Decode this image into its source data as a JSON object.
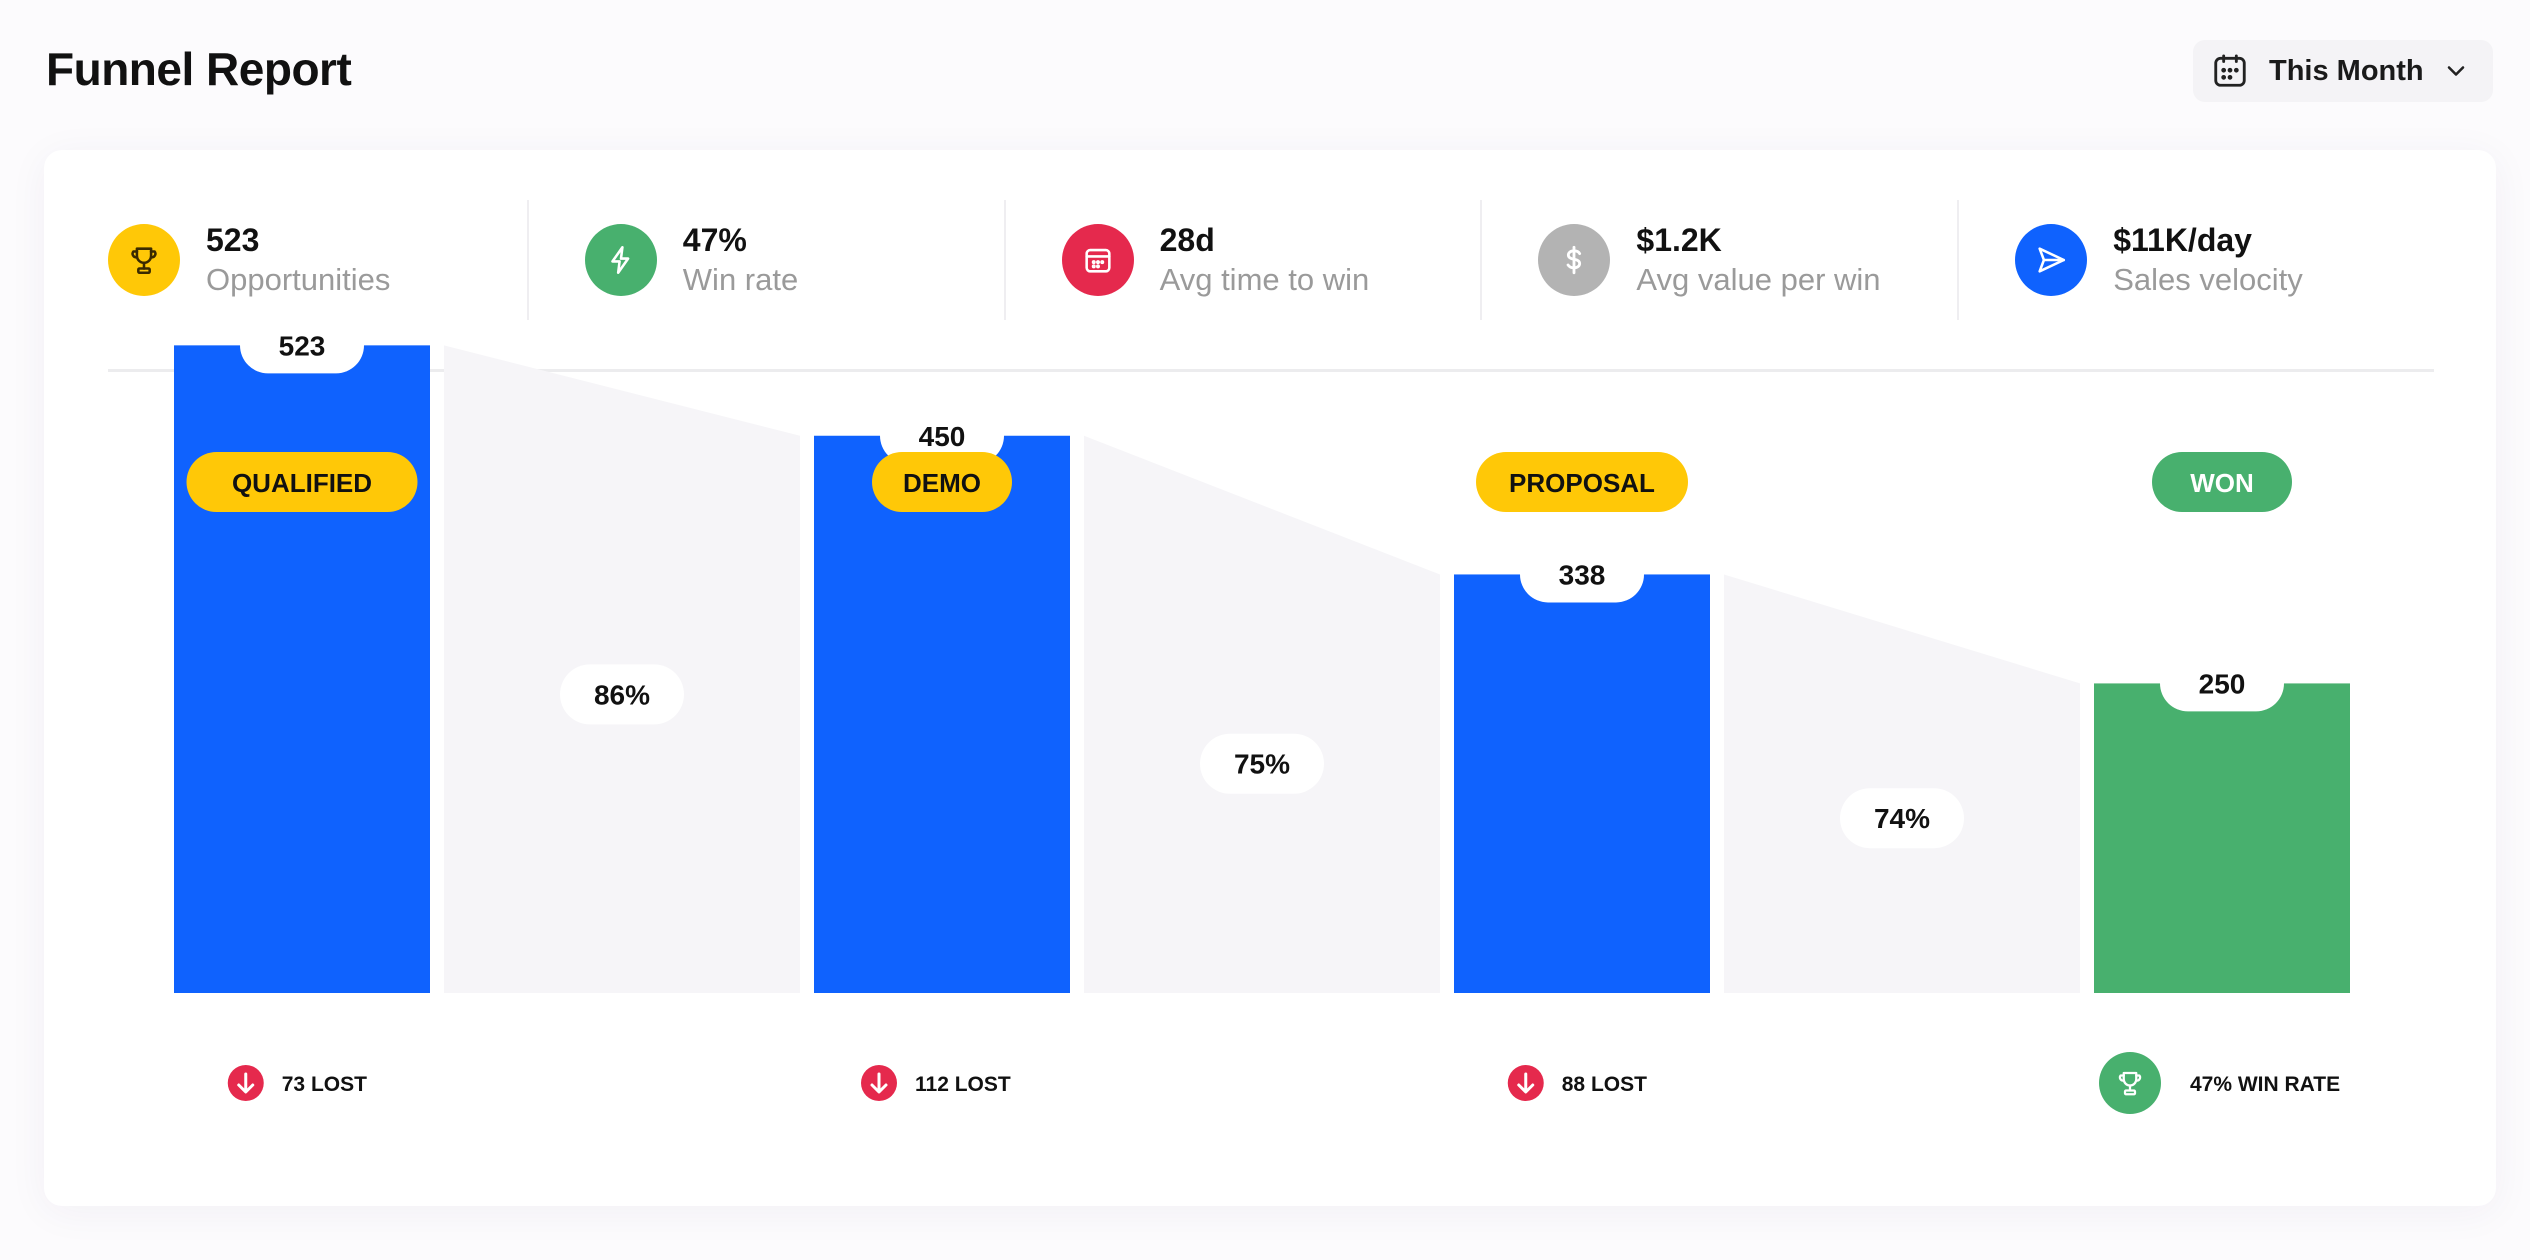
{
  "header": {
    "title": "Funnel Report",
    "date_filter": {
      "label": "This Month"
    }
  },
  "stats": [
    {
      "value": "523",
      "label": "Opportunities",
      "icon": "trophy-icon",
      "color": "#ffc807"
    },
    {
      "value": "47%",
      "label": "Win rate",
      "icon": "lightning-icon",
      "color": "#48b06e"
    },
    {
      "value": "28d",
      "label": "Avg time to win",
      "icon": "calendar-icon",
      "color": "#e5294d"
    },
    {
      "value": "$1.2K",
      "label": "Avg value per win",
      "icon": "dollar-icon",
      "color": "#b3b3b3"
    },
    {
      "value": "$11K/day",
      "label": "Sales velocity",
      "icon": "send-icon",
      "color": "#0f62fe"
    }
  ],
  "chart_data": {
    "type": "bar",
    "categories": [
      "QUALIFIED",
      "DEMO",
      "PROPOSAL",
      "WON"
    ],
    "values": [
      523,
      450,
      338,
      250
    ],
    "value_labels": [
      "523",
      "450",
      "338",
      "250"
    ],
    "conversions": [
      "86%",
      "75%",
      "74%"
    ],
    "footers": [
      "73 LOST",
      "112 LOST",
      "88 LOST",
      "47% WIN RATE"
    ],
    "footer_icons": [
      "arrow-down-icon",
      "arrow-down-icon",
      "arrow-down-icon",
      "trophy-icon"
    ],
    "ylim": [
      0,
      600
    ],
    "colors": {
      "bar": "#0f62fe",
      "won_bar": "#48b06e",
      "stage_pill": "#ffc807",
      "won_pill": "#48b06e",
      "lost": "#e5294d",
      "connector": "#f6f5f8"
    }
  }
}
